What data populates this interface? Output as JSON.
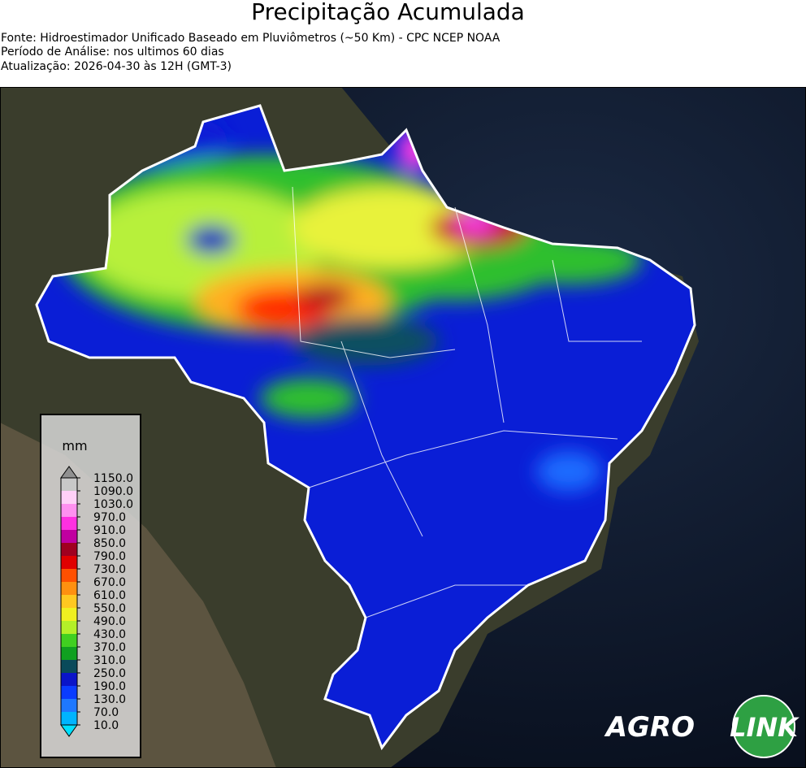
{
  "header": {
    "title": "Precipitação Acumulada",
    "lines": [
      "Fonte: Hidroestimador Unificado Baseado em Pluviômetros (~50 Km) - CPC NCEP NOAA",
      "Período de Análise: nos ultimos 60 dias",
      "Atualização: 2026-04-30 às 12H (GMT-3)"
    ]
  },
  "colorbar": {
    "unit": "mm",
    "labels": [
      "10.0",
      "70.0",
      "130.0",
      "190.0",
      "250.0",
      "310.0",
      "370.0",
      "430.0",
      "490.0",
      "550.0",
      "610.0",
      "670.0",
      "730.0",
      "790.0",
      "850.0",
      "910.0",
      "970.0",
      "1030.0",
      "1090.0",
      "1150.0"
    ],
    "colors": [
      "#00b4ff",
      "#1e78ff",
      "#0a3cff",
      "#0a14c8",
      "#0a4a5a",
      "#10a020",
      "#40d020",
      "#b4f028",
      "#f0f020",
      "#ffc820",
      "#ff9010",
      "#ff5000",
      "#e00000",
      "#a00020",
      "#c000a0",
      "#ff30e0",
      "#ff90f0",
      "#ffd0f8",
      "#c8c8c8"
    ],
    "under_color": "#00e0ff",
    "over_color": "#909090"
  },
  "logo": {
    "left": "AGRO",
    "right": "LINK"
  }
}
